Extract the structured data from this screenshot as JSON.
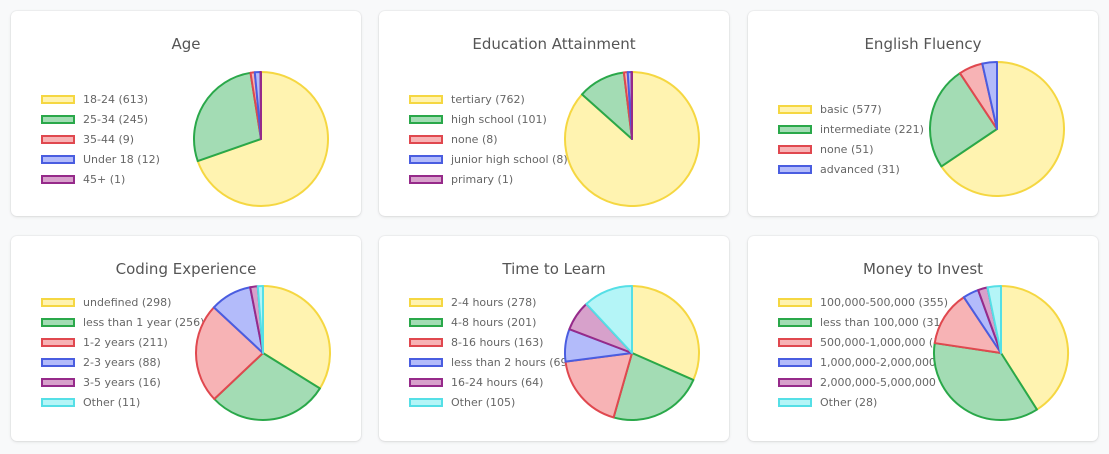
{
  "palette": [
    {
      "fill": "#fff3b0",
      "stroke": "#f5d742"
    },
    {
      "fill": "#a3dcb4",
      "stroke": "#2aa84a"
    },
    {
      "fill": "#f7b3b5",
      "stroke": "#e0484f"
    },
    {
      "fill": "#b3bbfa",
      "stroke": "#4a5de0"
    },
    {
      "fill": "#d7a1cb",
      "stroke": "#962a8a"
    },
    {
      "fill": "#b4f5f7",
      "stroke": "#55dfe6"
    }
  ],
  "chart_data": [
    {
      "type": "pie",
      "title": "Age",
      "legend_labels": [
        "18-24 (613)",
        "25-34 (245)",
        "35-44 (9)",
        "Under 18 (12)",
        "45+ (1)"
      ],
      "categories": [
        "18-24",
        "25-34",
        "35-44",
        "Under 18",
        "45+"
      ],
      "values": [
        613,
        245,
        9,
        12,
        1
      ],
      "legend_position": "left"
    },
    {
      "type": "pie",
      "title": "Education Attainment",
      "legend_labels": [
        "tertiary (762)",
        "high school (101)",
        "none (8)",
        "junior high school (8)",
        "primary (1)"
      ],
      "categories": [
        "tertiary",
        "high school",
        "none",
        "junior high school",
        "primary"
      ],
      "values": [
        762,
        101,
        8,
        8,
        1
      ],
      "legend_position": "left"
    },
    {
      "type": "pie",
      "title": "English Fluency",
      "legend_labels": [
        "basic (577)",
        "intermediate (221)",
        "none (51)",
        "advanced (31)"
      ],
      "categories": [
        "basic",
        "intermediate",
        "none",
        "advanced"
      ],
      "values": [
        577,
        221,
        51,
        31
      ],
      "legend_position": "left"
    },
    {
      "type": "pie",
      "title": "Coding Experience",
      "legend_labels": [
        "undefined (298)",
        "less than 1 year (256)",
        "1-2 years (211)",
        "2-3 years (88)",
        "3-5 years (16)",
        "Other (11)"
      ],
      "categories": [
        "undefined",
        "less than 1 year",
        "1-2 years",
        "2-3 years",
        "3-5 years",
        "Other"
      ],
      "values": [
        298,
        256,
        211,
        88,
        16,
        11
      ],
      "legend_position": "left"
    },
    {
      "type": "pie",
      "title": "Time to Learn",
      "legend_labels": [
        "2-4 hours (278)",
        "4-8 hours (201)",
        "8-16 hours (163)",
        "less than 2 hours (69)",
        "16-24 hours (64)",
        "Other (105)"
      ],
      "categories": [
        "2-4 hours",
        "4-8 hours",
        "8-16 hours",
        "less than 2 hours",
        "16-24 hours",
        "Other"
      ],
      "values": [
        278,
        201,
        163,
        69,
        64,
        105
      ],
      "legend_position": "left"
    },
    {
      "type": "pie",
      "title": "Money to Invest",
      "legend_labels": [
        "100,000-500,000 (355)",
        "less than 100,000 (31",
        "500,000-1,000,000 (1",
        "1,000,000-2,000,000",
        "2,000,000-5,000,000",
        "Other (28)"
      ],
      "categories": [
        "100,000-500,000",
        "less than 100,000",
        "500,000-1,000,000",
        "1,000,000-2,000,000",
        "2,000,000-5,000,000",
        "Other"
      ],
      "values": [
        355,
        315,
        115,
        33,
        20,
        28
      ],
      "legend_position": "left"
    }
  ]
}
